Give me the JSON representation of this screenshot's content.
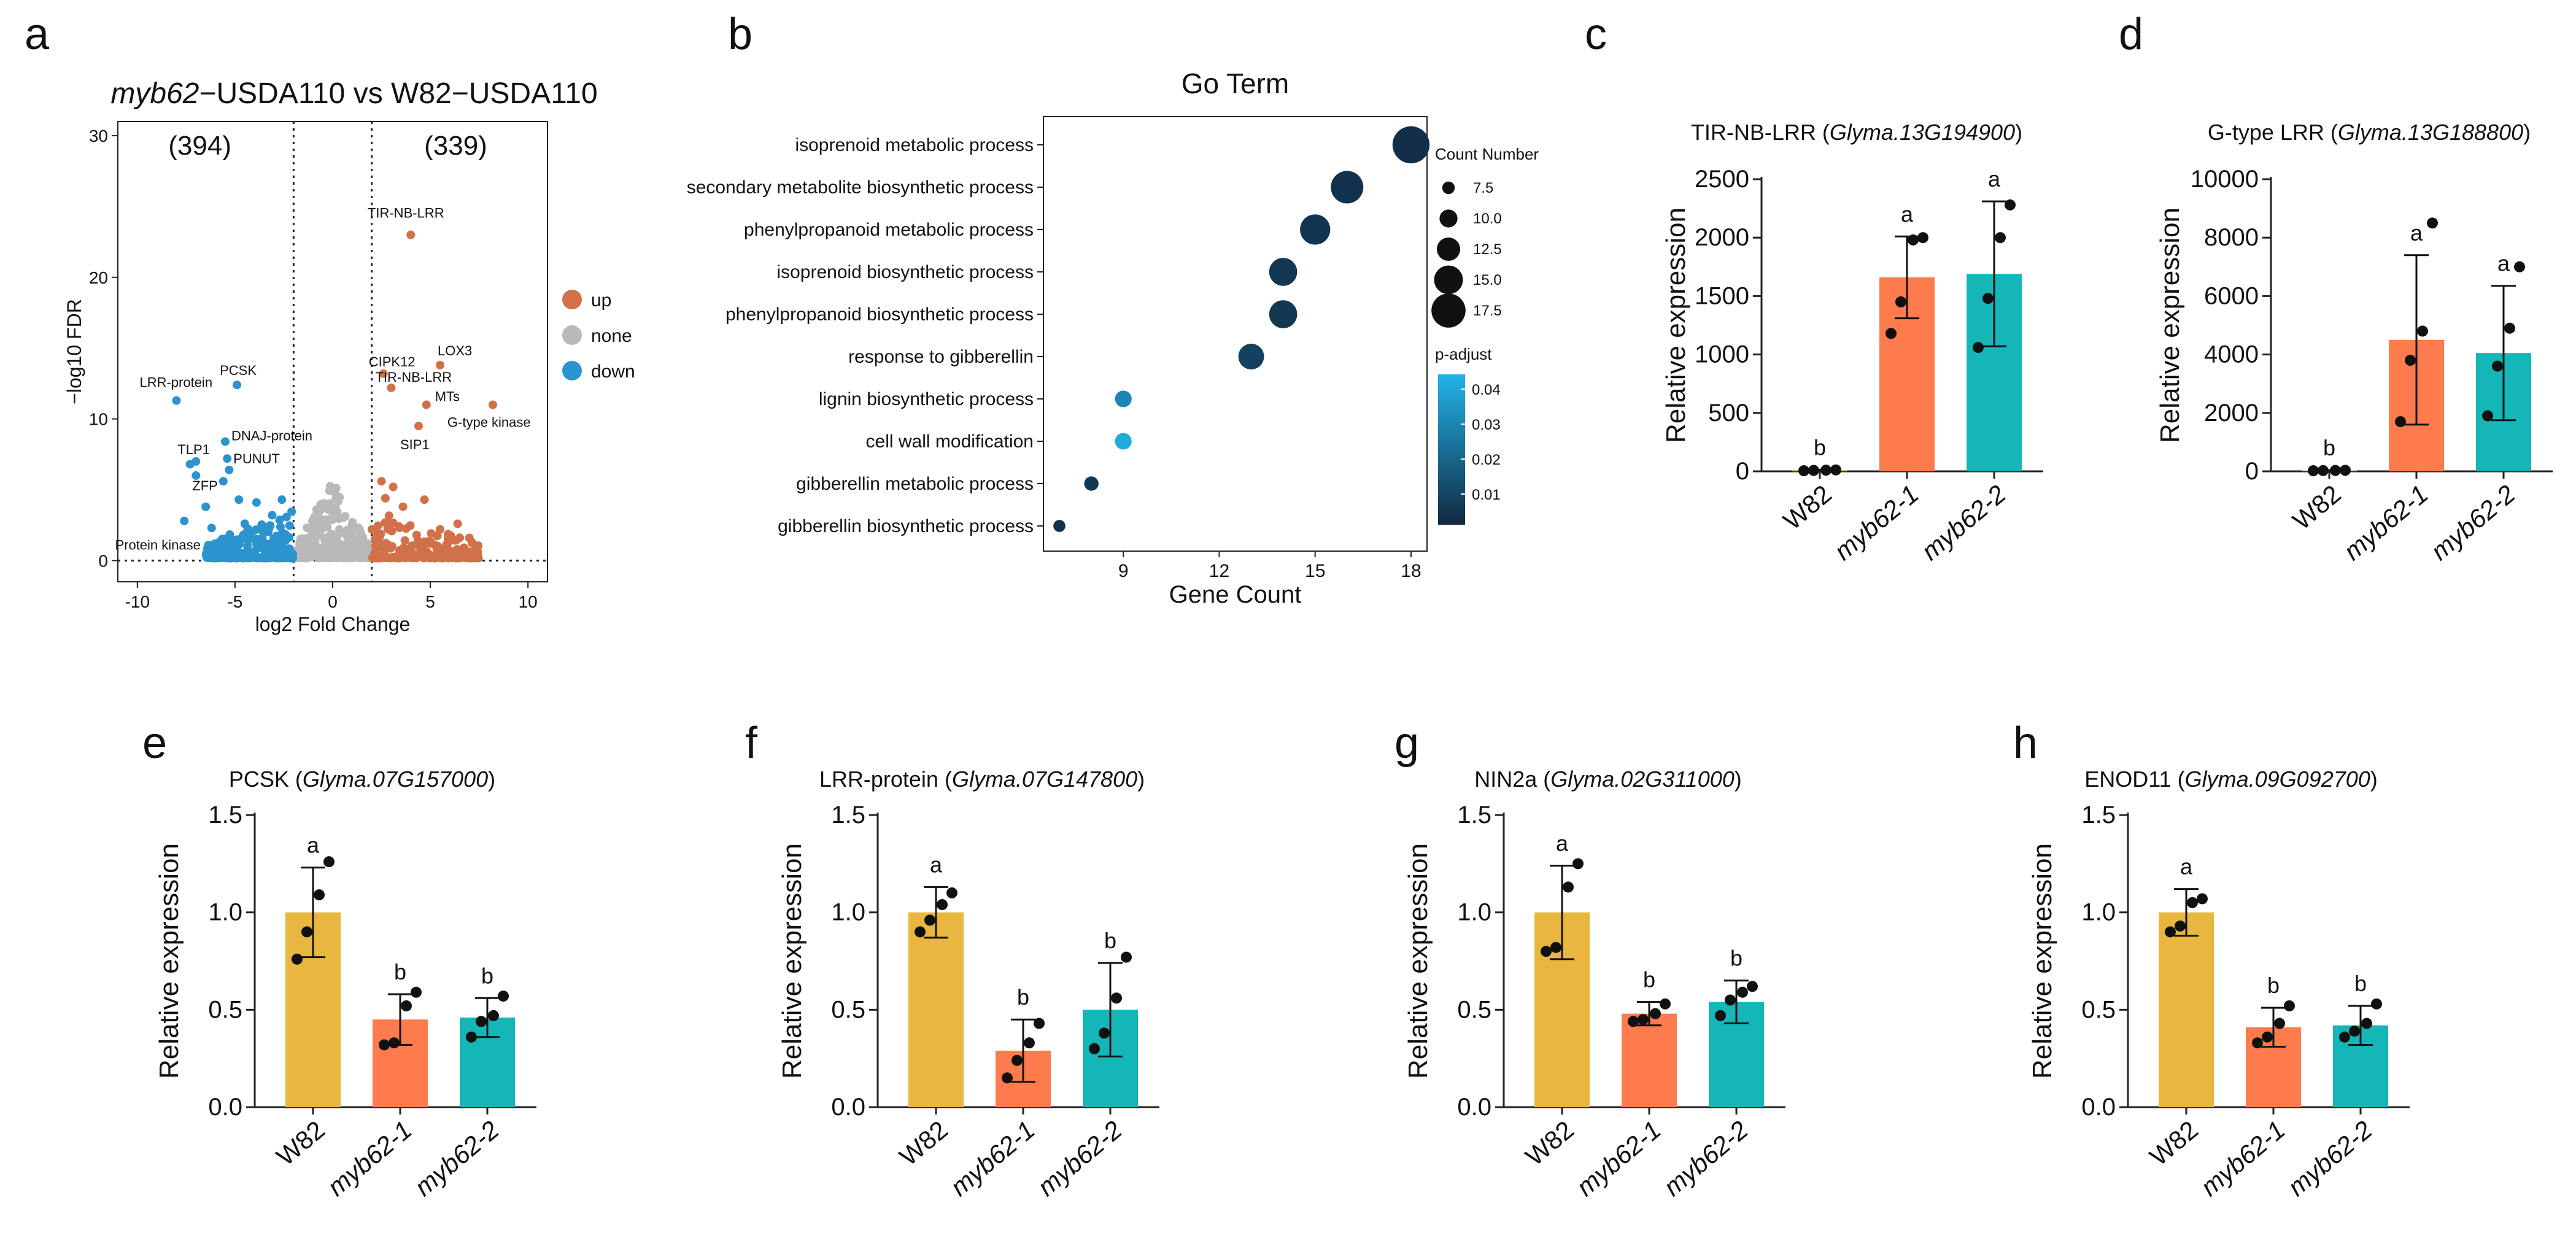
{
  "panels": {
    "a": {
      "letter": "a",
      "title_italic": "myb62",
      "title_rest": "−USDA110 vs W82−USDA110",
      "xlabel": "log2 Fold Change",
      "ylabel": "−log10 FDR",
      "count_down": "(394)",
      "count_up": "(339)",
      "legend": [
        {
          "label": "up",
          "color": "#d2704a"
        },
        {
          "label": "none",
          "color": "#b9b9b9"
        },
        {
          "label": "down",
          "color": "#2b94cf"
        }
      ]
    },
    "b": {
      "letter": "b"
    },
    "c": {
      "letter": "c"
    },
    "d": {
      "letter": "d"
    },
    "e": {
      "letter": "e"
    },
    "f": {
      "letter": "f"
    },
    "g": {
      "letter": "g"
    },
    "h": {
      "letter": "h"
    }
  },
  "chart_data": [
    {
      "id": "a",
      "type": "scatter",
      "title": "myb62−USDA110 vs W82−USDA110",
      "xlabel": "log2 Fold Change",
      "ylabel": "−log10 FDR",
      "xlim": [
        -11,
        11
      ],
      "ylim": [
        -1.5,
        31
      ],
      "xticks": [
        -10,
        -5,
        0,
        5,
        10
      ],
      "yticks": [
        0,
        10,
        20,
        30
      ],
      "thresholds": {
        "fc": [
          -2,
          2
        ],
        "fdr": 0
      },
      "labeled_points": [
        {
          "label": "TIR-NB-LRR",
          "x": 4.0,
          "y": 23.0,
          "group": "up"
        },
        {
          "label": "LOX3",
          "x": 5.5,
          "y": 13.8,
          "group": "up"
        },
        {
          "label": "CIPK12",
          "x": 2.6,
          "y": 13.2,
          "group": "up"
        },
        {
          "label": "TIR-NB-LRR",
          "x": 3.0,
          "y": 12.2,
          "group": "up"
        },
        {
          "label": "MTs",
          "x": 4.8,
          "y": 11.0,
          "group": "up"
        },
        {
          "label": "G-type kinase",
          "x": 8.2,
          "y": 11.0,
          "group": "up"
        },
        {
          "label": "SIP1",
          "x": 4.4,
          "y": 9.5,
          "group": "up"
        },
        {
          "label": "PCSK",
          "x": -4.9,
          "y": 12.4,
          "group": "down"
        },
        {
          "label": "LRR-protein",
          "x": -8.0,
          "y": 11.3,
          "group": "down"
        },
        {
          "label": "DNAJ-protein",
          "x": -5.5,
          "y": 8.4,
          "group": "down"
        },
        {
          "label": "TLP1",
          "x": -7.0,
          "y": 7.0,
          "group": "down"
        },
        {
          "label": "PUNUT",
          "x": -5.4,
          "y": 7.2,
          "group": "down"
        },
        {
          "label": "ZFP",
          "x": -7.0,
          "y": 6.0,
          "group": "down"
        },
        {
          "label": "Protein kinase",
          "x": -5.8,
          "y": 1.3,
          "group": "down"
        }
      ],
      "extra_points": [
        {
          "x": -5.3,
          "y": 6.4,
          "group": "down"
        },
        {
          "x": -5.6,
          "y": 5.6,
          "group": "down"
        },
        {
          "x": -7.3,
          "y": 6.8,
          "group": "down"
        },
        {
          "x": -4.8,
          "y": 4.3,
          "group": "down"
        },
        {
          "x": -3.9,
          "y": 4.1,
          "group": "down"
        },
        {
          "x": -6.5,
          "y": 3.8,
          "group": "down"
        },
        {
          "x": -7.6,
          "y": 2.8,
          "group": "down"
        },
        {
          "x": -3.1,
          "y": 3.2,
          "group": "down"
        },
        {
          "x": -2.6,
          "y": 4.3,
          "group": "down"
        },
        {
          "x": -6.2,
          "y": 2.3,
          "group": "down"
        },
        {
          "x": -4.5,
          "y": 2.6,
          "group": "down"
        },
        {
          "x": -3.6,
          "y": 1.6,
          "group": "down"
        },
        {
          "x": -5.0,
          "y": 1.1,
          "group": "down"
        },
        {
          "x": -2.8,
          "y": 0.9,
          "group": "down"
        },
        {
          "x": 2.5,
          "y": 5.6,
          "group": "up"
        },
        {
          "x": 3.1,
          "y": 5.2,
          "group": "up"
        },
        {
          "x": 2.7,
          "y": 4.4,
          "group": "up"
        },
        {
          "x": 4.7,
          "y": 4.3,
          "group": "up"
        },
        {
          "x": 3.6,
          "y": 3.8,
          "group": "up"
        },
        {
          "x": 6.4,
          "y": 2.6,
          "group": "up"
        },
        {
          "x": 5.5,
          "y": 2.2,
          "group": "up"
        },
        {
          "x": 7.0,
          "y": 1.6,
          "group": "up"
        },
        {
          "x": 3.4,
          "y": 2.4,
          "group": "up"
        },
        {
          "x": 4.3,
          "y": 1.8,
          "group": "up"
        },
        {
          "x": 5.0,
          "y": 1.2,
          "group": "up"
        },
        {
          "x": 2.3,
          "y": 1.7,
          "group": "up"
        },
        {
          "x": 6.0,
          "y": 0.7,
          "group": "up"
        },
        {
          "x": 3.9,
          "y": 0.5,
          "group": "up"
        }
      ],
      "cloud": {
        "down": {
          "x_range": [
            -6.5,
            -2.0
          ],
          "y_range": [
            0,
            3.5
          ],
          "n": 394
        },
        "none": {
          "x_range": [
            -2.0,
            2.0
          ],
          "y_range": [
            0,
            5.5
          ],
          "n": 260
        },
        "up": {
          "x_range": [
            2.0,
            7.5
          ],
          "y_range": [
            0,
            3.5
          ],
          "n": 339
        }
      }
    },
    {
      "id": "b",
      "type": "scatter",
      "title": "Go Term",
      "xlabel": "Gene Count",
      "xlim": [
        6.5,
        18.5
      ],
      "xticks": [
        9,
        12,
        15,
        18
      ],
      "categories": [
        "isoprenoid metabolic process",
        "secondary metabolite biosynthetic process",
        "phenylpropanoid metabolic process",
        "isoprenoid biosynthetic process",
        "phenylpropanoid biosynthetic process",
        "response to gibberellin",
        "lignin biosynthetic process",
        "cell wall modification",
        "gibberellin metabolic process",
        "gibberellin biosynthetic process"
      ],
      "values": [
        18,
        16,
        15,
        14,
        14,
        13,
        9,
        9,
        8,
        7
      ],
      "p_adjust": [
        0.002,
        0.003,
        0.004,
        0.005,
        0.005,
        0.008,
        0.03,
        0.042,
        0.005,
        0.003
      ],
      "size_legend_title": "Count Number",
      "size_legend": [
        "7.5",
        "10.0",
        "12.5",
        "15.0",
        "17.5"
      ],
      "color_legend_title": "p-adjust",
      "color_legend": [
        "0.04",
        "0.03",
        "0.02",
        "0.01"
      ]
    },
    {
      "id": "c",
      "type": "bar",
      "gene": "TIR-NB-LRR",
      "gene_id": "Glyma.13G194900",
      "ylabel": "Relative expression",
      "ylim": [
        0,
        2500
      ],
      "yticks": [
        "0",
        "500",
        "1000",
        "1500",
        "2000",
        "2500"
      ],
      "categories": [
        "W82",
        "myb62-1",
        "myb62-2"
      ],
      "values": [
        10,
        1660,
        1690
      ],
      "errors": [
        3,
        350,
        620
      ],
      "points": [
        [
          5,
          8,
          10,
          12
        ],
        [
          1180,
          1450,
          1980,
          2000
        ],
        [
          1060,
          1480,
          2000,
          2280
        ]
      ],
      "letters": [
        "b",
        "a",
        "a"
      ],
      "colors": [
        "#e9b63f",
        "#fd7b4d",
        "#14b6b7"
      ]
    },
    {
      "id": "d",
      "type": "bar",
      "gene": "G-type LRR",
      "gene_id": "Glyma.13G188800",
      "ylabel": "Relative expression",
      "ylim": [
        0,
        10000
      ],
      "yticks": [
        "0",
        "2000",
        "4000",
        "6000",
        "8000",
        "10000"
      ],
      "categories": [
        "W82",
        "myb62-1",
        "myb62-2"
      ],
      "values": [
        30,
        4500,
        4050
      ],
      "errors": [
        10,
        2900,
        2300
      ],
      "points": [
        [
          20,
          25,
          30,
          35
        ],
        [
          1700,
          3800,
          4800,
          8500
        ],
        [
          1900,
          3600,
          4900,
          7000
        ]
      ],
      "letters": [
        "b",
        "a",
        "a"
      ],
      "colors": [
        "#e9b63f",
        "#fd7b4d",
        "#14b6b7"
      ]
    },
    {
      "id": "e",
      "type": "bar",
      "gene": "PCSK",
      "gene_id": "Glyma.07G157000",
      "ylabel": "Relative expression",
      "ylim": [
        0,
        1.5
      ],
      "yticks": [
        "0.0",
        "0.5",
        "1.0",
        "1.5"
      ],
      "categories": [
        "W82",
        "myb62-1",
        "myb62-2"
      ],
      "values": [
        1.0,
        0.45,
        0.46
      ],
      "errors": [
        0.23,
        0.13,
        0.1
      ],
      "points": [
        [
          0.76,
          0.9,
          1.09,
          1.26
        ],
        [
          0.32,
          0.33,
          0.52,
          0.59
        ],
        [
          0.36,
          0.44,
          0.47,
          0.57
        ]
      ],
      "letters": [
        "a",
        "b",
        "b"
      ],
      "colors": [
        "#e9b63f",
        "#fd7b4d",
        "#14b6b7"
      ]
    },
    {
      "id": "f",
      "type": "bar",
      "gene": "LRR-protein",
      "gene_id": "Glyma.07G147800",
      "ylabel": "Relative expression",
      "ylim": [
        0,
        1.5
      ],
      "yticks": [
        "0.0",
        "0.5",
        "1.0",
        "1.5"
      ],
      "categories": [
        "W82",
        "myb62-1",
        "myb62-2"
      ],
      "values": [
        1.0,
        0.29,
        0.5
      ],
      "errors": [
        0.13,
        0.16,
        0.24
      ],
      "points": [
        [
          0.9,
          0.96,
          1.04,
          1.1
        ],
        [
          0.15,
          0.24,
          0.33,
          0.43
        ],
        [
          0.3,
          0.38,
          0.56,
          0.77
        ]
      ],
      "letters": [
        "a",
        "b",
        "b"
      ],
      "colors": [
        "#e9b63f",
        "#fd7b4d",
        "#14b6b7"
      ]
    },
    {
      "id": "g",
      "type": "bar",
      "gene": "NIN2a",
      "gene_id": "Glyma.02G311000",
      "ylabel": "Relative expression",
      "ylim": [
        0,
        1.5
      ],
      "yticks": [
        "0.0",
        "0.5",
        "1.0",
        "1.5"
      ],
      "categories": [
        "W82",
        "myb62-1",
        "myb62-2"
      ],
      "values": [
        1.0,
        0.48,
        0.54
      ],
      "errors": [
        0.24,
        0.06,
        0.11
      ],
      "points": [
        [
          0.8,
          0.82,
          1.13,
          1.25
        ],
        [
          0.44,
          0.45,
          0.48,
          0.53
        ],
        [
          0.47,
          0.55,
          0.59,
          0.62
        ]
      ],
      "letters": [
        "a",
        "b",
        "b"
      ],
      "colors": [
        "#e9b63f",
        "#fd7b4d",
        "#14b6b7"
      ]
    },
    {
      "id": "h",
      "type": "bar",
      "gene": "ENOD11",
      "gene_id": "Glyma.09G092700",
      "ylabel": "Relative expression",
      "ylim": [
        0,
        1.5
      ],
      "yticks": [
        "0.0",
        "0.5",
        "1.0",
        "1.5"
      ],
      "categories": [
        "W82",
        "myb62-1",
        "myb62-2"
      ],
      "values": [
        1.0,
        0.41,
        0.42
      ],
      "errors": [
        0.12,
        0.1,
        0.1
      ],
      "points": [
        [
          0.9,
          0.93,
          1.05,
          1.07
        ],
        [
          0.33,
          0.36,
          0.43,
          0.52
        ],
        [
          0.36,
          0.39,
          0.43,
          0.53
        ]
      ],
      "letters": [
        "a",
        "b",
        "b"
      ],
      "colors": [
        "#e9b63f",
        "#fd7b4d",
        "#14b6b7"
      ]
    }
  ]
}
